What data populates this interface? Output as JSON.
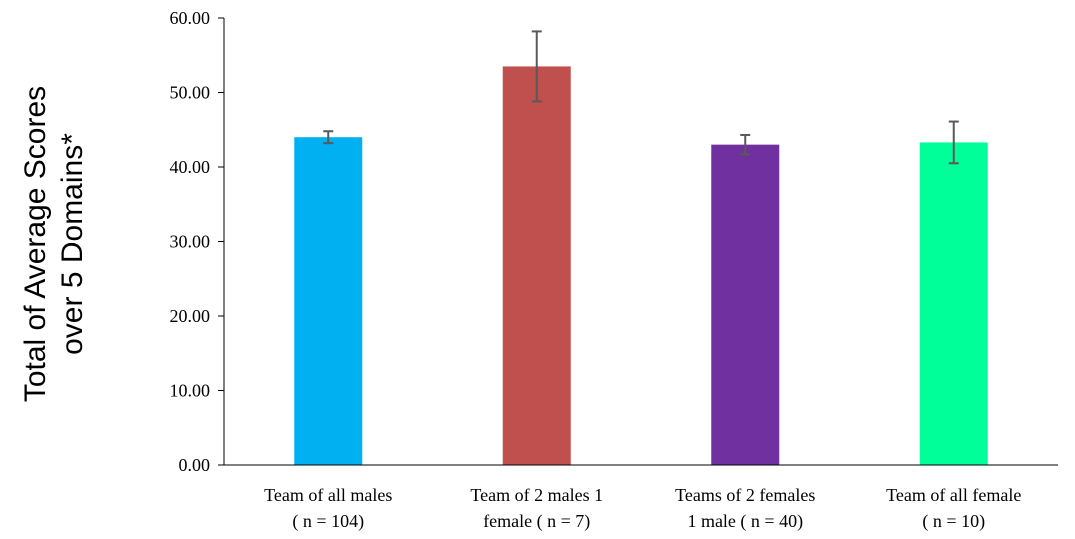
{
  "chart_data": {
    "type": "bar",
    "title": "",
    "xlabel": "",
    "ylabel_lines": [
      "Total of Average Scores",
      "over 5 Domains*"
    ],
    "ylim": [
      0,
      60
    ],
    "yticks": [
      "0.00",
      "10.00",
      "20.00",
      "30.00",
      "40.00",
      "50.00",
      "60.00"
    ],
    "grid": false,
    "legend": "none",
    "categories": [
      {
        "line1": "Team of all males",
        "line2": "( n = 104)"
      },
      {
        "line1": "Team of 2 males 1",
        "line2": "female ( n = 7)"
      },
      {
        "line1": "Teams of 2 females",
        "line2": "1 male ( n = 40)"
      },
      {
        "line1": "Team of all female",
        "line2": "( n = 10)"
      }
    ],
    "values": [
      44.0,
      53.5,
      43.0,
      43.3
    ],
    "error": [
      0.8,
      4.7,
      1.3,
      2.8
    ],
    "colors": [
      "#00B0F0",
      "#C0504D",
      "#7030A0",
      "#00FF99"
    ],
    "error_bar_color": "#595959",
    "axis_color": "#000000"
  }
}
